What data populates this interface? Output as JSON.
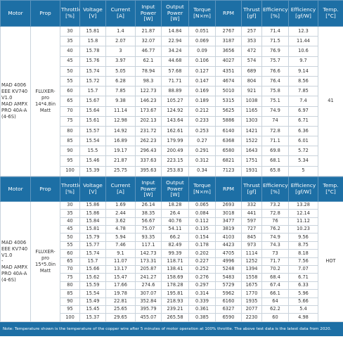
{
  "tables": [
    {
      "header": [
        "Motor",
        "Prop",
        "Throttle [%]",
        "Voltage [V]",
        "Current [A]",
        "Input Power [W]",
        "Output Power [W]",
        "Torque [N×m]",
        "RPM",
        "Thrust [gf]",
        "Efficiency [%]",
        "Efficiency [gf/W]",
        "Temp. [°C]"
      ],
      "motor": [
        "MAD 4006 EEE KV740 V1.0",
        "MAD AMPX PRO 40A-A (4-6S)"
      ],
      "prop": "FLUXER-pro 14*4.8in Matt",
      "temp": "41",
      "rows": [
        [
          30,
          15.81,
          1.4,
          21.87,
          14.84,
          0.051,
          2767,
          257,
          71.4,
          12.3
        ],
        [
          35,
          15.8,
          2.07,
          32.07,
          22.94,
          0.069,
          3187,
          353,
          71.5,
          11.44
        ],
        [
          40,
          15.78,
          3,
          46.77,
          34.24,
          0.09,
          3656,
          472,
          76.9,
          10.6
        ],
        [
          45,
          15.76,
          3.97,
          62.1,
          44.68,
          0.106,
          4027,
          574,
          75.7,
          9.7
        ],
        [
          50,
          15.74,
          5.05,
          78.94,
          57.68,
          0.127,
          4351,
          689,
          76.6,
          9.14
        ],
        [
          55,
          15.72,
          6.28,
          98.3,
          71.71,
          0.147,
          4674,
          804,
          76.4,
          8.56
        ],
        [
          60,
          15.7,
          7.85,
          122.73,
          88.89,
          0.169,
          5010,
          921,
          75.8,
          7.85
        ],
        [
          65,
          15.67,
          9.38,
          146.23,
          105.27,
          0.189,
          5315,
          1038,
          75.1,
          7.4
        ],
        [
          70,
          15.64,
          11.14,
          173.67,
          124.92,
          0.212,
          5625,
          1165,
          74.9,
          6.97
        ],
        [
          75,
          15.61,
          12.98,
          202.13,
          143.64,
          0.233,
          5886,
          1303,
          74,
          6.71
        ],
        [
          80,
          15.57,
          14.92,
          231.72,
          162.61,
          0.253,
          6140,
          1421,
          72.8,
          6.36
        ],
        [
          85,
          15.54,
          16.89,
          262.23,
          179.99,
          0.27,
          6368,
          1522,
          71.1,
          6.01
        ],
        [
          90,
          15.5,
          19.17,
          296.43,
          200.49,
          0.291,
          6580,
          1643,
          69.8,
          5.72
        ],
        [
          95,
          15.46,
          21.87,
          337.63,
          223.15,
          0.312,
          6821,
          1751,
          68.1,
          5.34
        ],
        [
          100,
          15.39,
          25.75,
          395.63,
          253.83,
          0.34,
          7123,
          1931,
          65.8,
          5
        ]
      ]
    },
    {
      "header": [
        "Motor",
        "Prop",
        "Throttle [%]",
        "Voltage [V]",
        "Current [A]",
        "Input Power [W]",
        "Output Power [W]",
        "Torque [N×m]",
        "RPM",
        "Thrust [gf]",
        "Efficiency [%]",
        "Efficiency [gf/W]",
        "Temp. [°C]"
      ],
      "motor": [
        "MAD 4006 EEE KV740 V1.0",
        "-",
        "MAD AMPX PRO 40A-A (4-6S)"
      ],
      "prop": "FLUXER-pro 15*5.0in Matt",
      "temp": "HOT",
      "rows": [
        [
          30,
          15.86,
          1.69,
          26.14,
          18.28,
          0.065,
          2693,
          332,
          73.2,
          13.28
        ],
        [
          35,
          15.86,
          2.44,
          38.35,
          26.4,
          0.084,
          3018,
          441,
          72.8,
          12.14
        ],
        [
          40,
          15.84,
          3.62,
          56.67,
          40.76,
          0.112,
          3477,
          597,
          76,
          11.12
        ],
        [
          45,
          15.81,
          4.78,
          75.07,
          54.11,
          0.135,
          3819,
          727,
          76.2,
          10.23
        ],
        [
          50,
          15.79,
          5.94,
          93.35,
          66.2,
          0.154,
          4103,
          845,
          74.9,
          9.56
        ],
        [
          55,
          15.77,
          7.46,
          117.1,
          82.49,
          0.178,
          4423,
          973,
          74.3,
          8.75
        ],
        [
          60,
          15.74,
          9.1,
          142.73,
          99.39,
          0.202,
          4705,
          1114,
          73,
          8.18
        ],
        [
          65,
          15.7,
          11.07,
          173.31,
          118.71,
          0.227,
          4996,
          1252,
          71.7,
          7.56
        ],
        [
          70,
          15.66,
          13.17,
          205.87,
          138.41,
          0.252,
          5248,
          1394,
          70.2,
          7.07
        ],
        [
          75,
          15.62,
          15.47,
          241.27,
          158.69,
          0.276,
          5483,
          1558,
          68.4,
          6.71
        ],
        [
          80,
          15.59,
          17.66,
          274.6,
          178.28,
          0.297,
          5729,
          1675,
          67.4,
          6.33
        ],
        [
          85,
          15.54,
          19.78,
          307.07,
          195.81,
          0.314,
          5962,
          1770,
          66.1,
          5.96
        ],
        [
          90,
          15.49,
          22.81,
          352.84,
          218.93,
          0.339,
          6160,
          1935,
          64,
          5.66
        ],
        [
          95,
          15.45,
          25.65,
          395.79,
          239.21,
          0.361,
          6327,
          2077,
          62.2,
          5.4
        ],
        [
          100,
          15.37,
          29.65,
          455.07,
          265.58,
          0.385,
          6590,
          2230,
          60,
          4.98
        ]
      ]
    }
  ],
  "note": "Note: Temperature shown is the temperature of the copper wire after 5 minutes of motor operation at 100% throttle. The above test data is the latest data from 2020."
}
